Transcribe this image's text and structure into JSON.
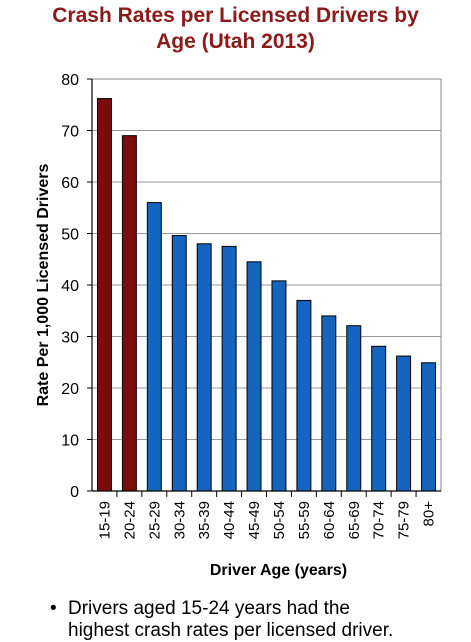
{
  "title_lines": [
    "Crash Rates per Licensed Drivers by",
    "Age (Utah 2013)"
  ],
  "bullet": {
    "marker": "•",
    "lines": [
      "Drivers aged 15-24 years had the",
      "highest crash rates per licensed driver."
    ]
  },
  "colors": {
    "highlight": "#7B0C0C",
    "bar": "#1565C0",
    "title": "#8B1A1A",
    "grid": "#999999"
  },
  "chart_data": {
    "type": "bar",
    "title": "Crash Rates per Licensed Drivers by Age (Utah 2013)",
    "xlabel": "Driver Age (years)",
    "ylabel": "Rate Per 1,000 Licensed Drivers",
    "ylim": [
      0,
      80
    ],
    "yticks": [
      0,
      10,
      20,
      30,
      40,
      50,
      60,
      70,
      80
    ],
    "grid": true,
    "categories": [
      "15-19",
      "20-24",
      "25-29",
      "30-34",
      "35-39",
      "40-44",
      "45-49",
      "50-54",
      "55-59",
      "60-64",
      "65-69",
      "70-74",
      "75-79",
      "80+"
    ],
    "values": [
      76.2,
      69.0,
      56.0,
      49.6,
      48.0,
      47.5,
      44.5,
      40.8,
      37.0,
      34.0,
      32.1,
      28.1,
      26.2,
      24.9
    ],
    "highlight_categories": [
      "15-19",
      "20-24"
    ]
  }
}
